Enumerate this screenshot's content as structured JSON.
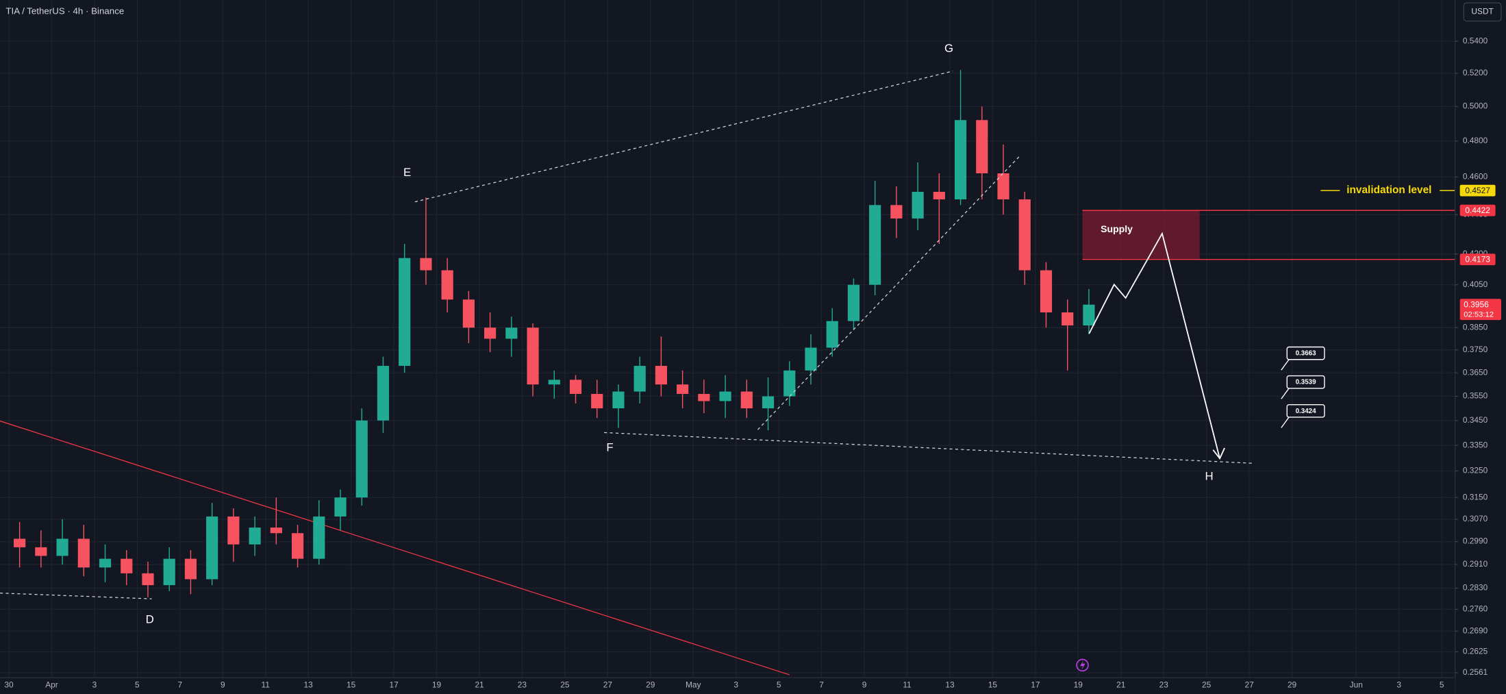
{
  "chart_data": {
    "type": "candlestick",
    "title": "TIA / TetherUS · 4h · Binance",
    "currency": "USDT",
    "log_scale": true,
    "grid": true,
    "up_color": "#22ab94",
    "down_color": "#f7525f",
    "x": [
      "03-30",
      "03-31",
      "04-01",
      "04-02",
      "04-03",
      "04-04",
      "04-05",
      "04-06",
      "04-07",
      "04-08",
      "04-09",
      "04-10",
      "04-11",
      "04-12",
      "04-13",
      "04-14",
      "04-15",
      "04-16",
      "04-17",
      "04-18",
      "04-19",
      "04-20",
      "04-21",
      "04-22",
      "04-23",
      "04-24",
      "04-25",
      "04-26",
      "04-27",
      "04-28",
      "04-29",
      "04-30",
      "05-01",
      "05-02",
      "05-03",
      "05-04",
      "05-05",
      "05-06",
      "05-07",
      "05-08",
      "05-09",
      "05-10",
      "05-11",
      "05-12",
      "05-13",
      "05-14",
      "05-15",
      "05-16",
      "05-17",
      "05-18",
      "05-19"
    ],
    "open": [
      0.3,
      0.297,
      0.294,
      0.3,
      0.29,
      0.293,
      0.288,
      0.284,
      0.293,
      0.286,
      0.308,
      0.298,
      0.304,
      0.302,
      0.293,
      0.308,
      0.315,
      0.345,
      0.368,
      0.418,
      0.412,
      0.398,
      0.385,
      0.38,
      0.385,
      0.36,
      0.362,
      0.356,
      0.35,
      0.357,
      0.368,
      0.36,
      0.356,
      0.353,
      0.357,
      0.35,
      0.355,
      0.366,
      0.376,
      0.388,
      0.405,
      0.445,
      0.438,
      0.452,
      0.448,
      0.492,
      0.462,
      0.448,
      0.412,
      0.392,
      0.386
    ],
    "high": [
      0.306,
      0.303,
      0.307,
      0.305,
      0.298,
      0.296,
      0.292,
      0.297,
      0.296,
      0.313,
      0.311,
      0.308,
      0.315,
      0.305,
      0.314,
      0.318,
      0.35,
      0.372,
      0.425,
      0.449,
      0.418,
      0.402,
      0.392,
      0.39,
      0.387,
      0.366,
      0.364,
      0.362,
      0.36,
      0.372,
      0.381,
      0.366,
      0.362,
      0.364,
      0.362,
      0.363,
      0.37,
      0.382,
      0.394,
      0.408,
      0.458,
      0.455,
      0.468,
      0.462,
      0.522,
      0.5,
      0.478,
      0.452,
      0.416,
      0.398,
      0.403
    ],
    "low": [
      0.29,
      0.29,
      0.291,
      0.287,
      0.285,
      0.284,
      0.28,
      0.282,
      0.281,
      0.284,
      0.292,
      0.294,
      0.298,
      0.29,
      0.291,
      0.303,
      0.312,
      0.34,
      0.365,
      0.405,
      0.392,
      0.378,
      0.374,
      0.372,
      0.355,
      0.354,
      0.352,
      0.346,
      0.342,
      0.352,
      0.355,
      0.35,
      0.348,
      0.346,
      0.346,
      0.341,
      0.351,
      0.36,
      0.372,
      0.384,
      0.4,
      0.428,
      0.432,
      0.425,
      0.445,
      0.448,
      0.44,
      0.405,
      0.385,
      0.366,
      0.382
    ],
    "close": [
      0.297,
      0.294,
      0.3,
      0.29,
      0.293,
      0.288,
      0.284,
      0.293,
      0.286,
      0.308,
      0.298,
      0.304,
      0.302,
      0.293,
      0.308,
      0.315,
      0.345,
      0.368,
      0.418,
      0.412,
      0.398,
      0.385,
      0.38,
      0.385,
      0.36,
      0.362,
      0.356,
      0.35,
      0.357,
      0.368,
      0.36,
      0.356,
      0.353,
      0.357,
      0.35,
      0.355,
      0.366,
      0.376,
      0.388,
      0.405,
      0.445,
      0.438,
      0.452,
      0.448,
      0.492,
      0.462,
      0.448,
      0.412,
      0.392,
      0.386,
      0.3956
    ],
    "countdown": "02:53:12",
    "xlim": [
      "03-29 14:00",
      "06-05 15:00"
    ],
    "xticks": [
      {
        "value": "03-30",
        "label": "30"
      },
      {
        "value": "04-01",
        "label": "Apr"
      },
      {
        "value": "04-03",
        "label": "3"
      },
      {
        "value": "04-05",
        "label": "5"
      },
      {
        "value": "04-07",
        "label": "7"
      },
      {
        "value": "04-09",
        "label": "9"
      },
      {
        "value": "04-11",
        "label": "11"
      },
      {
        "value": "04-13",
        "label": "13"
      },
      {
        "value": "04-15",
        "label": "15"
      },
      {
        "value": "04-17",
        "label": "17"
      },
      {
        "value": "04-19",
        "label": "19"
      },
      {
        "value": "04-21",
        "label": "21"
      },
      {
        "value": "04-23",
        "label": "23"
      },
      {
        "value": "04-25",
        "label": "25"
      },
      {
        "value": "04-27",
        "label": "27"
      },
      {
        "value": "04-29",
        "label": "29"
      },
      {
        "value": "05-01",
        "label": "May"
      },
      {
        "value": "05-03",
        "label": "3"
      },
      {
        "value": "05-05",
        "label": "5"
      },
      {
        "value": "05-07",
        "label": "7"
      },
      {
        "value": "05-09",
        "label": "9"
      },
      {
        "value": "05-11",
        "label": "11"
      },
      {
        "value": "05-13",
        "label": "13"
      },
      {
        "value": "05-15",
        "label": "15"
      },
      {
        "value": "05-17",
        "label": "17"
      },
      {
        "value": "05-19",
        "label": "19"
      },
      {
        "value": "05-21",
        "label": "21"
      },
      {
        "value": "05-23",
        "label": "23"
      },
      {
        "value": "05-25",
        "label": "25"
      },
      {
        "value": "05-27",
        "label": "27"
      },
      {
        "value": "05-29",
        "label": "29"
      },
      {
        "value": "06-01",
        "label": "Jun"
      },
      {
        "value": "06-03",
        "label": "3"
      },
      {
        "value": "06-05",
        "label": "5"
      }
    ],
    "ylim": [
      0.2546,
      0.567
    ],
    "yticks": [
      {
        "value": 0.54,
        "label": "0.5400"
      },
      {
        "value": 0.52,
        "label": "0.5200"
      },
      {
        "value": 0.5,
        "label": "0.5000"
      },
      {
        "value": 0.48,
        "label": "0.4800"
      },
      {
        "value": 0.46,
        "label": "0.4600"
      },
      {
        "value": 0.44,
        "label": "0.4400"
      },
      {
        "value": 0.42,
        "label": "0.4200"
      },
      {
        "value": 0.405,
        "label": "0.4050"
      },
      {
        "value": 0.385,
        "label": "0.3850"
      },
      {
        "value": 0.375,
        "label": "0.3750"
      },
      {
        "value": 0.365,
        "label": "0.3650"
      },
      {
        "value": 0.355,
        "label": "0.3550"
      },
      {
        "value": 0.345,
        "label": "0.3450"
      },
      {
        "value": 0.335,
        "label": "0.3350"
      },
      {
        "value": 0.325,
        "label": "0.3250"
      },
      {
        "value": 0.315,
        "label": "0.3150"
      },
      {
        "value": 0.307,
        "label": "0.3070"
      },
      {
        "value": 0.299,
        "label": "0.2990"
      },
      {
        "value": 0.291,
        "label": "0.2910"
      },
      {
        "value": 0.283,
        "label": "0.2830"
      },
      {
        "value": 0.276,
        "label": "0.2760"
      },
      {
        "value": 0.269,
        "label": "0.2690"
      },
      {
        "value": 0.2625,
        "label": "0.2625"
      },
      {
        "value": 0.2561,
        "label": "0.2561"
      }
    ],
    "wave_labels": [
      "D",
      "E",
      "F",
      "G",
      "H"
    ],
    "invalidation": {
      "label": "invalidation level",
      "value": 0.4527
    },
    "supply": {
      "label": "Supply",
      "top": 0.4422,
      "bottom": 0.4173
    },
    "targets": [
      0.3663,
      0.3539,
      0.3424
    ]
  }
}
